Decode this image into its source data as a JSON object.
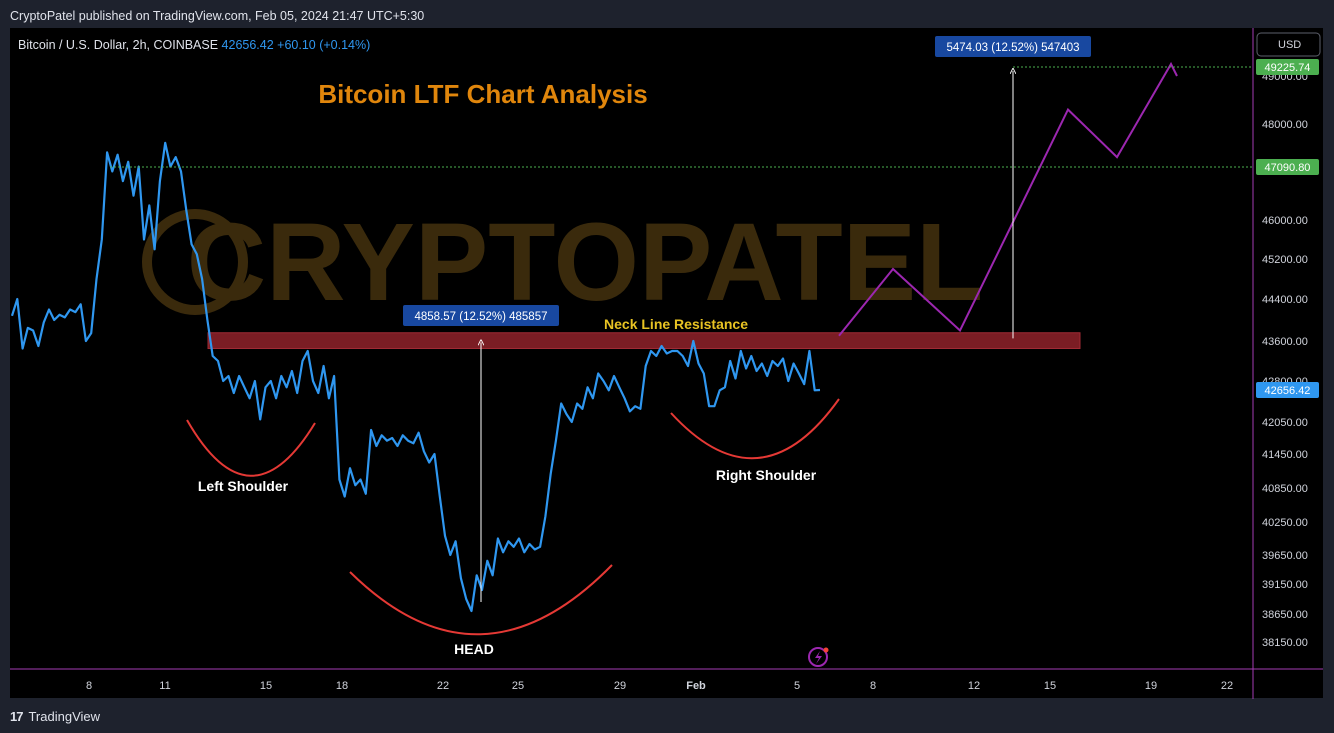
{
  "publisher_line": "CryptoPatel published on TradingView.com, Feb 05, 2024 21:47 UTC+5:30",
  "symbol_line": {
    "name": "Bitcoin / U.S. Dollar, 2h, COINBASE",
    "price": "42656.42",
    "change": "+60.10 (+0.14%)"
  },
  "currency_button": "USD",
  "footer_brand": "TradingView",
  "colors": {
    "price_line": "#2f97f0",
    "resistance_zone": "#7b1d24",
    "projection": "#9c27b0",
    "curve": "#e53935",
    "title": "#e0860c",
    "measure_label_bg": "#1848a0",
    "badge_green": "#4caf50",
    "badge_blue": "#2f97f0"
  },
  "chart_data": {
    "type": "line",
    "title": "Bitcoin LTF Chart Analysis",
    "watermark": "CRYPTOPATEL",
    "x_tick_labels": [
      "8",
      "11",
      "15",
      "18",
      "22",
      "25",
      "29",
      "Feb",
      "5",
      "8",
      "12",
      "15",
      "19",
      "22"
    ],
    "y_tick_labels": [
      "49000.00",
      "48000.00",
      "46000.00",
      "45200.00",
      "44400.00",
      "43600.00",
      "42800.00",
      "42050.00",
      "41450.00",
      "40850.00",
      "40250.00",
      "39650.00",
      "39150.00",
      "38650.00",
      "38150.00"
    ],
    "price_badges": [
      {
        "value": "49225.74",
        "color": "green"
      },
      {
        "value": "47090.80",
        "color": "green"
      },
      {
        "value": "42656.42",
        "color": "blue"
      }
    ],
    "series": [
      {
        "values": [
          44080,
          44400,
          43450,
          43850,
          43800,
          43500,
          43950,
          44200,
          44000,
          44100,
          44050,
          44200,
          44150,
          44300,
          43600,
          43750,
          44800,
          45600,
          47400,
          47000,
          47350,
          46800,
          47200,
          46500,
          47100,
          45600,
          46300,
          45400,
          46800,
          47600,
          47100,
          47300,
          47000,
          46200,
          45500,
          45300,
          44800,
          44000,
          43300,
          43200,
          42800,
          42900,
          42600,
          42900,
          42700,
          42500,
          42800,
          42100,
          42700,
          42800,
          42500,
          42900,
          42700,
          43000,
          42600,
          43200,
          43400,
          42800,
          42600,
          43100,
          42500,
          42900,
          41000,
          40700,
          41200,
          40900,
          41000,
          40750,
          41900,
          41600,
          41800,
          41700,
          41750,
          41600,
          41800,
          41700,
          41650,
          41850,
          41500,
          41300,
          41450,
          40700,
          40000,
          39650,
          39900,
          39250,
          38900,
          38700,
          39300,
          39050,
          39550,
          39300,
          39950,
          39700,
          39900,
          39800,
          39950,
          39700,
          39850,
          39750,
          39800,
          40350,
          41100,
          41700,
          42400,
          42200,
          42050,
          42400,
          42300,
          42700,
          42500,
          42950,
          42800,
          42650,
          42900,
          42700,
          42500,
          42250,
          42350,
          42300,
          43100,
          43400,
          43300,
          43500,
          43350,
          43400,
          43400,
          43300,
          43100,
          43600,
          43150,
          42950,
          42350,
          42350,
          42650,
          42700,
          43200,
          42850,
          43400,
          43050,
          43300,
          43000,
          43150,
          42900,
          43200,
          43100,
          43250,
          42800,
          43150,
          42950,
          42750,
          43400,
          42650,
          42656.42
        ]
      }
    ],
    "projection_path": [
      43700,
      45000,
      43800,
      48300,
      47300,
      49300,
      49000
    ],
    "neckline_zone": {
      "from": 43550,
      "to": 43700
    },
    "measurements": [
      {
        "label": "4858.57 (12.52%) 485857",
        "from": 38850,
        "to": 43650
      },
      {
        "label": "5474.03 (12.52%) 547403",
        "from": 43650,
        "to": 49225.74
      }
    ],
    "annotations": {
      "neckline": "Neck Line Resistance",
      "left_shoulder": "Left Shoulder",
      "head": "HEAD",
      "right_shoulder": "Right Shoulder"
    }
  }
}
